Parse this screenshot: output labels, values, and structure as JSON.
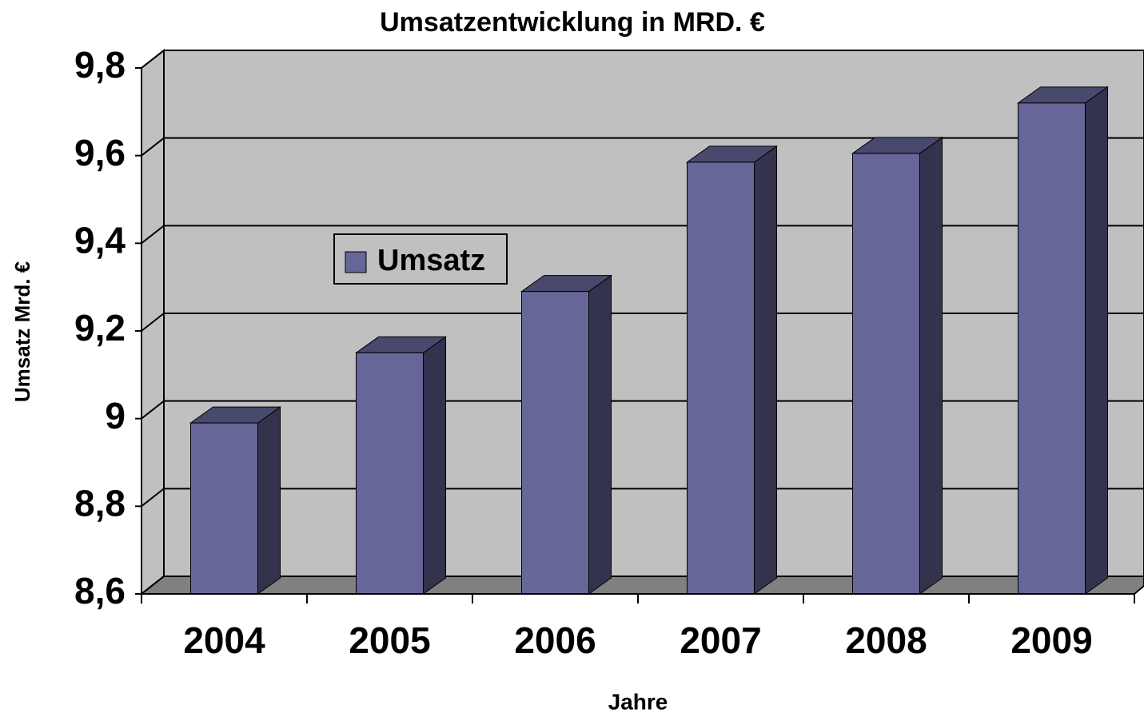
{
  "chart_data": {
    "type": "bar",
    "title": "Umsatzentwicklung in MRD. €",
    "x_label": "Jahre",
    "y_label": "Umsatz Mrd. €",
    "categories": [
      "2004",
      "2005",
      "2006",
      "2007",
      "2008",
      "2009"
    ],
    "series": [
      {
        "name": "Umsatz",
        "color": "#666699",
        "values": [
          8.99,
          9.15,
          9.29,
          9.585,
          9.605,
          9.72
        ]
      }
    ],
    "ylim": [
      8.6,
      9.8
    ],
    "yticks": [
      {
        "value": 8.6,
        "label": "8,6"
      },
      {
        "value": 8.8,
        "label": "8,8"
      },
      9,
      {
        "value": 9.2,
        "label": "9,2"
      },
      {
        "value": 9.4,
        "label": "9,4"
      },
      {
        "value": 9.6,
        "label": "9,6"
      },
      {
        "value": 9.8,
        "label": "9,8"
      }
    ],
    "grid": true,
    "legend": "left"
  }
}
